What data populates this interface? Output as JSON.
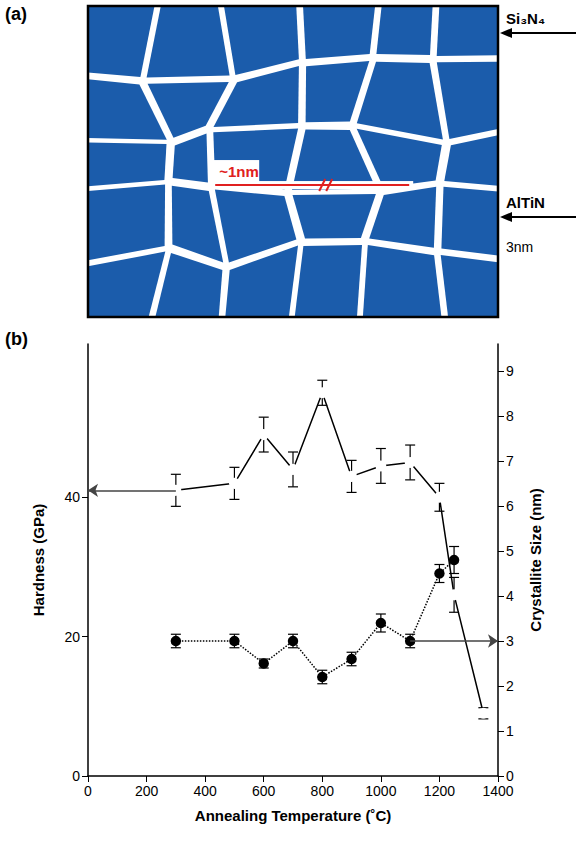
{
  "diagram": {
    "panel_label": "(a)",
    "phases": {
      "boundary": "Si₃N₄",
      "grain": "AlTiN"
    },
    "spacing_label": "~1nm",
    "scale_label": "3nm"
  },
  "chart_data": {
    "type": "line",
    "panel_label": "(b)",
    "x_label": "Annealing Temperature (˚C)",
    "y_label": "Hardness (GPa)",
    "y2_label": "Crystallite Size (nm)",
    "x": [
      300,
      500,
      600,
      700,
      800,
      900,
      1000,
      1100,
      1200,
      1250,
      1350
    ],
    "xlim": [
      0,
      1400
    ],
    "xticks": [
      0,
      200,
      400,
      600,
      800,
      1000,
      1200,
      1400
    ],
    "ylim": [
      0,
      62
    ],
    "yticks": [
      0,
      20,
      40
    ],
    "y2lim": [
      0,
      9.6
    ],
    "y2ticks": [
      0,
      1,
      2,
      3,
      4,
      5,
      6,
      7,
      8,
      9
    ],
    "grid": false,
    "series": [
      {
        "color": "#000000",
        "marker": "open_circle",
        "line_style": "solid",
        "values": [
          41,
          42,
          49,
          44,
          55,
          43,
          44.5,
          45,
          40,
          26,
          9
        ],
        "errors": [
          2.3,
          2.3,
          2.5,
          2.5,
          1.8,
          2.3,
          2.5,
          2.5,
          2,
          2.5,
          0.8
        ]
      },
      {
        "axis": "y2",
        "color": "#000000",
        "marker": "filled_circle",
        "line_style": "dotted",
        "values": [
          3.0,
          3.0,
          2.5,
          3.0,
          2.2,
          2.6,
          3.4,
          3.0,
          4.5,
          4.8,
          null
        ],
        "errors": [
          0.15,
          0.15,
          0.1,
          0.15,
          0.15,
          0.15,
          0.2,
          0.15,
          0.2,
          0.3,
          null
        ]
      }
    ]
  }
}
